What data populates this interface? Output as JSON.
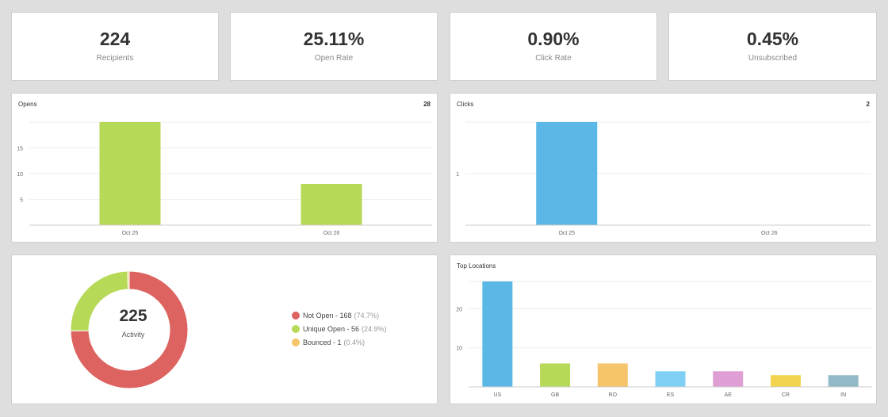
{
  "stats": [
    {
      "value": "224",
      "label": "Recipients"
    },
    {
      "value": "25.11%",
      "label": "Open Rate"
    },
    {
      "value": "0.90%",
      "label": "Click Rate"
    },
    {
      "value": "0.45%",
      "label": "Unsubscribed"
    }
  ],
  "opens": {
    "title": "Opens",
    "total": "28"
  },
  "clicks": {
    "title": "Clicks",
    "total": "2"
  },
  "activity": {
    "value": "225",
    "label": "Activity",
    "legend": [
      {
        "text": "Not Open - 168",
        "pct": "(74.7%)",
        "color": "#dd6360"
      },
      {
        "text": "Unique Open - 56",
        "pct": "(24.9%)",
        "color": "#b6d957"
      },
      {
        "text": "Bounced - 1",
        "pct": "(0.4%)",
        "color": "#f6c46a"
      }
    ]
  },
  "locations": {
    "title": "Top Locations"
  },
  "chart_data": [
    {
      "type": "bar",
      "title": "Opens",
      "categories": [
        "Oct 25",
        "Oct 26"
      ],
      "values": [
        20,
        8
      ],
      "ylim": [
        0,
        20
      ],
      "yticks": [
        5,
        10,
        15
      ],
      "colors": [
        "#b6d957",
        "#b6d957"
      ]
    },
    {
      "type": "bar",
      "title": "Clicks",
      "categories": [
        "Oct 25",
        "Oct 26"
      ],
      "values": [
        2,
        0
      ],
      "ylim": [
        0,
        2
      ],
      "yticks": [
        1
      ],
      "colors": [
        "#5bb8e6",
        "#5bb8e6"
      ]
    },
    {
      "type": "pie",
      "title": "Activity",
      "categories": [
        "Not Open",
        "Unique Open",
        "Bounced"
      ],
      "values": [
        168,
        56,
        1
      ],
      "colors": [
        "#dd6360",
        "#b6d957",
        "#f6c46a"
      ]
    },
    {
      "type": "bar",
      "title": "Top Locations",
      "categories": [
        "US",
        "GB",
        "RO",
        "ES",
        "AE",
        "CR",
        "IN"
      ],
      "values": [
        27,
        6,
        6,
        4,
        4,
        3,
        3
      ],
      "ylim": [
        0,
        27
      ],
      "yticks": [
        10,
        20
      ],
      "colors": [
        "#5bb8e6",
        "#b6d957",
        "#f6c46a",
        "#80d0f5",
        "#df9fd4",
        "#f2d44e",
        "#93b9c8"
      ]
    }
  ]
}
